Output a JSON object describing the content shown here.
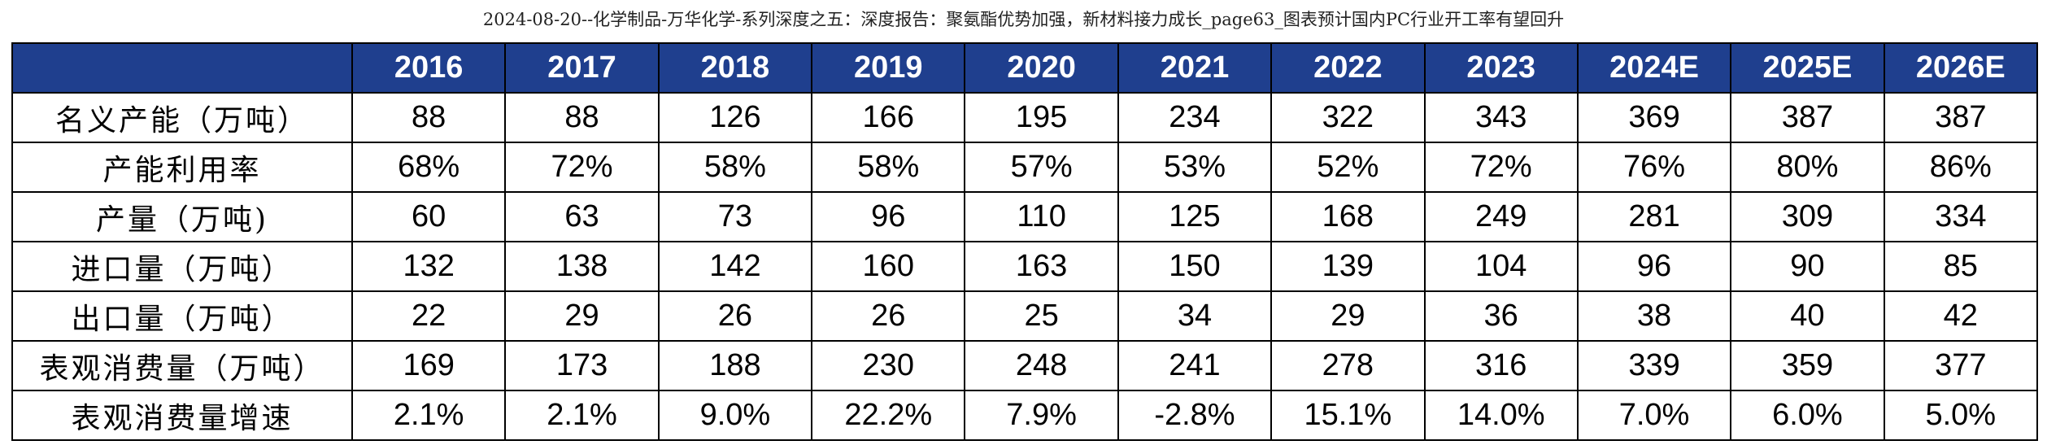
{
  "title": "2024-08-20--化学制品-万华化学-系列深度之五：深度报告：聚氨酯优势加强，新材料接力成长_page63_图表预计国内PC行业开工率有望回升",
  "colors": {
    "header_background": "#1f3f8e",
    "header_text": "#ffffff",
    "border": "#000000"
  },
  "table": {
    "columns": [
      "2016",
      "2017",
      "2018",
      "2019",
      "2020",
      "2021",
      "2022",
      "2023",
      "2024E",
      "2025E",
      "2026E"
    ],
    "rows": [
      {
        "label": "名义产能（万吨）",
        "values": [
          "88",
          "88",
          "126",
          "166",
          "195",
          "234",
          "322",
          "343",
          "369",
          "387",
          "387"
        ]
      },
      {
        "label": "产能利用率",
        "values": [
          "68%",
          "72%",
          "58%",
          "58%",
          "57%",
          "53%",
          "52%",
          "72%",
          "76%",
          "80%",
          "86%"
        ]
      },
      {
        "label": "产量（万吨)",
        "values": [
          "60",
          "63",
          "73",
          "96",
          "110",
          "125",
          "168",
          "249",
          "281",
          "309",
          "334"
        ]
      },
      {
        "label": "进口量（万吨）",
        "values": [
          "132",
          "138",
          "142",
          "160",
          "163",
          "150",
          "139",
          "104",
          "96",
          "90",
          "85"
        ]
      },
      {
        "label": "出口量（万吨）",
        "values": [
          "22",
          "29",
          "26",
          "26",
          "25",
          "34",
          "29",
          "36",
          "38",
          "40",
          "42"
        ]
      },
      {
        "label": "表观消费量（万吨）",
        "values": [
          "169",
          "173",
          "188",
          "230",
          "248",
          "241",
          "278",
          "316",
          "339",
          "359",
          "377"
        ]
      },
      {
        "label": "表观消费量增速",
        "values": [
          "2.1%",
          "2.1%",
          "9.0%",
          "22.2%",
          "7.9%",
          "-2.8%",
          "15.1%",
          "14.0%",
          "7.0%",
          "6.0%",
          "5.0%"
        ]
      }
    ]
  }
}
